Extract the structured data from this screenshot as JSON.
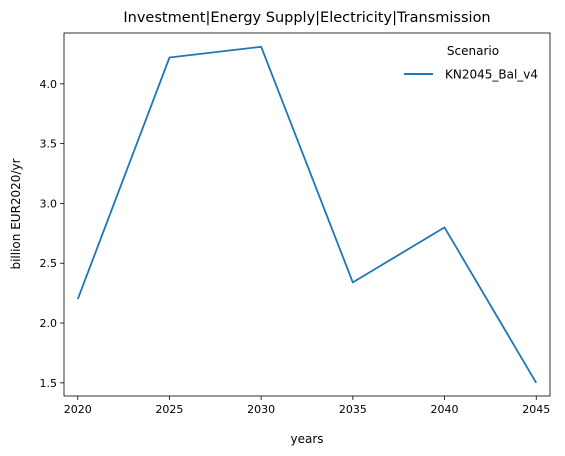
{
  "chart_data": {
    "type": "line",
    "title": "Investment|Energy Supply|Electricity|Transmission",
    "xlabel": "years",
    "ylabel": "billion EUR2020/yr",
    "x": [
      2020,
      2025,
      2030,
      2035,
      2040,
      2045
    ],
    "xticks": [
      "2020",
      "2025",
      "2030",
      "2035",
      "2040",
      "2045"
    ],
    "yticks": [
      "1.5",
      "2.0",
      "2.5",
      "3.0",
      "3.5",
      "4.0"
    ],
    "xlim": [
      2019.25,
      2045.75
    ],
    "ylim": [
      1.39,
      4.425
    ],
    "grid": false,
    "legend": {
      "title": "Scenario",
      "placement": "top-right"
    },
    "series": [
      {
        "name": "KN2045_Bal_v4",
        "color": "#1f77b4",
        "values": [
          2.2,
          4.22,
          4.31,
          2.34,
          2.8,
          1.5
        ]
      }
    ]
  }
}
